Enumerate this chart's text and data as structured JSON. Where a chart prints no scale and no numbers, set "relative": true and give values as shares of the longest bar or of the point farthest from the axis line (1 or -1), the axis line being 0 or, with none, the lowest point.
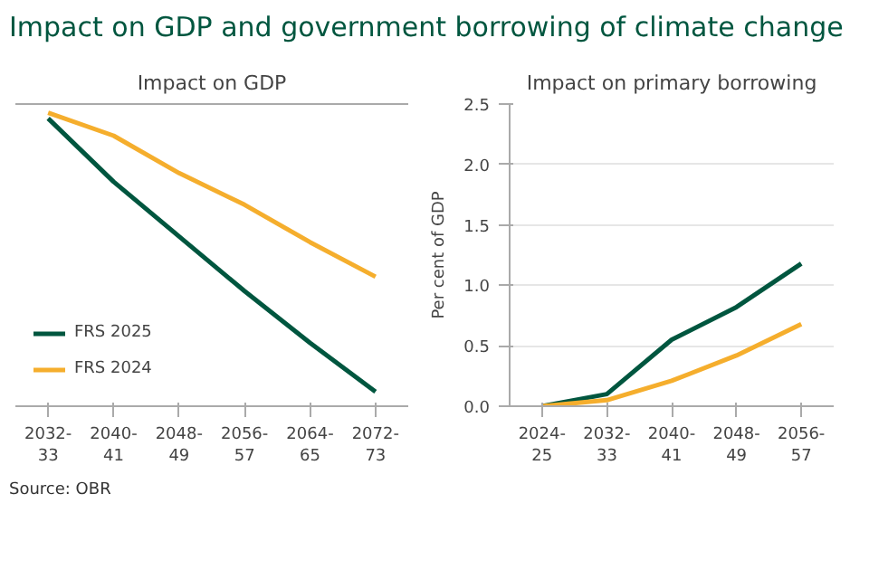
{
  "chart_data": [
    {
      "type": "line",
      "title": "Impact on GDP",
      "relative": true,
      "legend": "bottom left",
      "tick_labels": "x",
      "grid": false,
      "categories": [
        "2032-33",
        "2040-41",
        "2048-49",
        "2056-57",
        "2064-65",
        "2072-73"
      ],
      "series": [
        {
          "name": "FRS 2025",
          "color": "#00563f",
          "values": [
            -0.05,
            -0.27,
            -0.46,
            -0.65,
            -0.83,
            -1.0
          ]
        },
        {
          "name": "FRS 2024",
          "color": "#f5ae2d",
          "values": [
            -0.03,
            -0.11,
            -0.24,
            -0.35,
            -0.48,
            -0.6
          ]
        }
      ],
      "annotations": [
        "Impact on GDP and government borrowing of climate change",
        "Source: OBR"
      ]
    },
    {
      "type": "line",
      "title": "Impact on primary borrowing",
      "ylabel": "Per cent of GDP",
      "grid": "y",
      "categories": [
        "2024-25",
        "2032-33",
        "2040-41",
        "2048-49",
        "2056-57"
      ],
      "ylim": [
        0,
        2.5
      ],
      "yticks": [
        {
          "value": 0,
          "label": "0.0"
        },
        0.5,
        {
          "value": 1,
          "label": "1.0"
        },
        1.5,
        {
          "value": 2,
          "label": "2.0"
        },
        2.5
      ],
      "series": [
        {
          "color": "#00563f",
          "values": [
            0,
            0.1,
            0.55,
            0.82,
            1.18
          ]
        },
        {
          "color": "#f5ae2d",
          "values": [
            0,
            0.05,
            0.21,
            0.42,
            0.68
          ]
        }
      ]
    }
  ]
}
